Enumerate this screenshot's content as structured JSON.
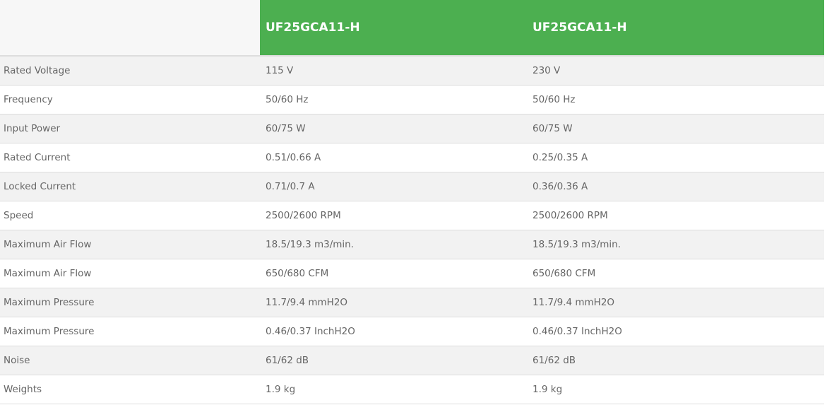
{
  "header": {
    "columns": [
      "",
      "UF25GCA11-H",
      "UF25GCA11-H"
    ]
  },
  "colors": {
    "header_bg": "#4caf50",
    "odd_row": "#f2f2f2",
    "text": "#666666"
  },
  "rows": [
    {
      "label": "Rated Voltage",
      "values": [
        "115 V",
        "230 V"
      ]
    },
    {
      "label": "Frequency",
      "values": [
        "50/60 Hz",
        "50/60 Hz"
      ]
    },
    {
      "label": "Input Power",
      "values": [
        "60/75 W",
        "60/75 W"
      ]
    },
    {
      "label": "Rated Current",
      "values": [
        "0.51/0.66 A",
        "0.25/0.35 A"
      ]
    },
    {
      "label": "Locked Current",
      "values": [
        "0.71/0.7 A",
        "0.36/0.36 A"
      ]
    },
    {
      "label": "Speed",
      "values": [
        "2500/2600 RPM",
        "2500/2600 RPM"
      ]
    },
    {
      "label": "Maximum Air Flow",
      "values": [
        "18.5/19.3 m3/min.",
        "18.5/19.3 m3/min."
      ]
    },
    {
      "label": "Maximum Air Flow",
      "values": [
        "650/680 CFM",
        "650/680 CFM"
      ]
    },
    {
      "label": "Maximum Pressure",
      "values": [
        "11.7/9.4 mmH2O",
        "11.7/9.4 mmH2O"
      ]
    },
    {
      "label": "Maximum Pressure",
      "values": [
        "0.46/0.37 InchH2O",
        "0.46/0.37 InchH2O"
      ]
    },
    {
      "label": "Noise",
      "values": [
        "61/62 dB",
        "61/62 dB"
      ]
    },
    {
      "label": "Weights",
      "values": [
        "1.9 kg",
        "1.9 kg"
      ]
    }
  ]
}
